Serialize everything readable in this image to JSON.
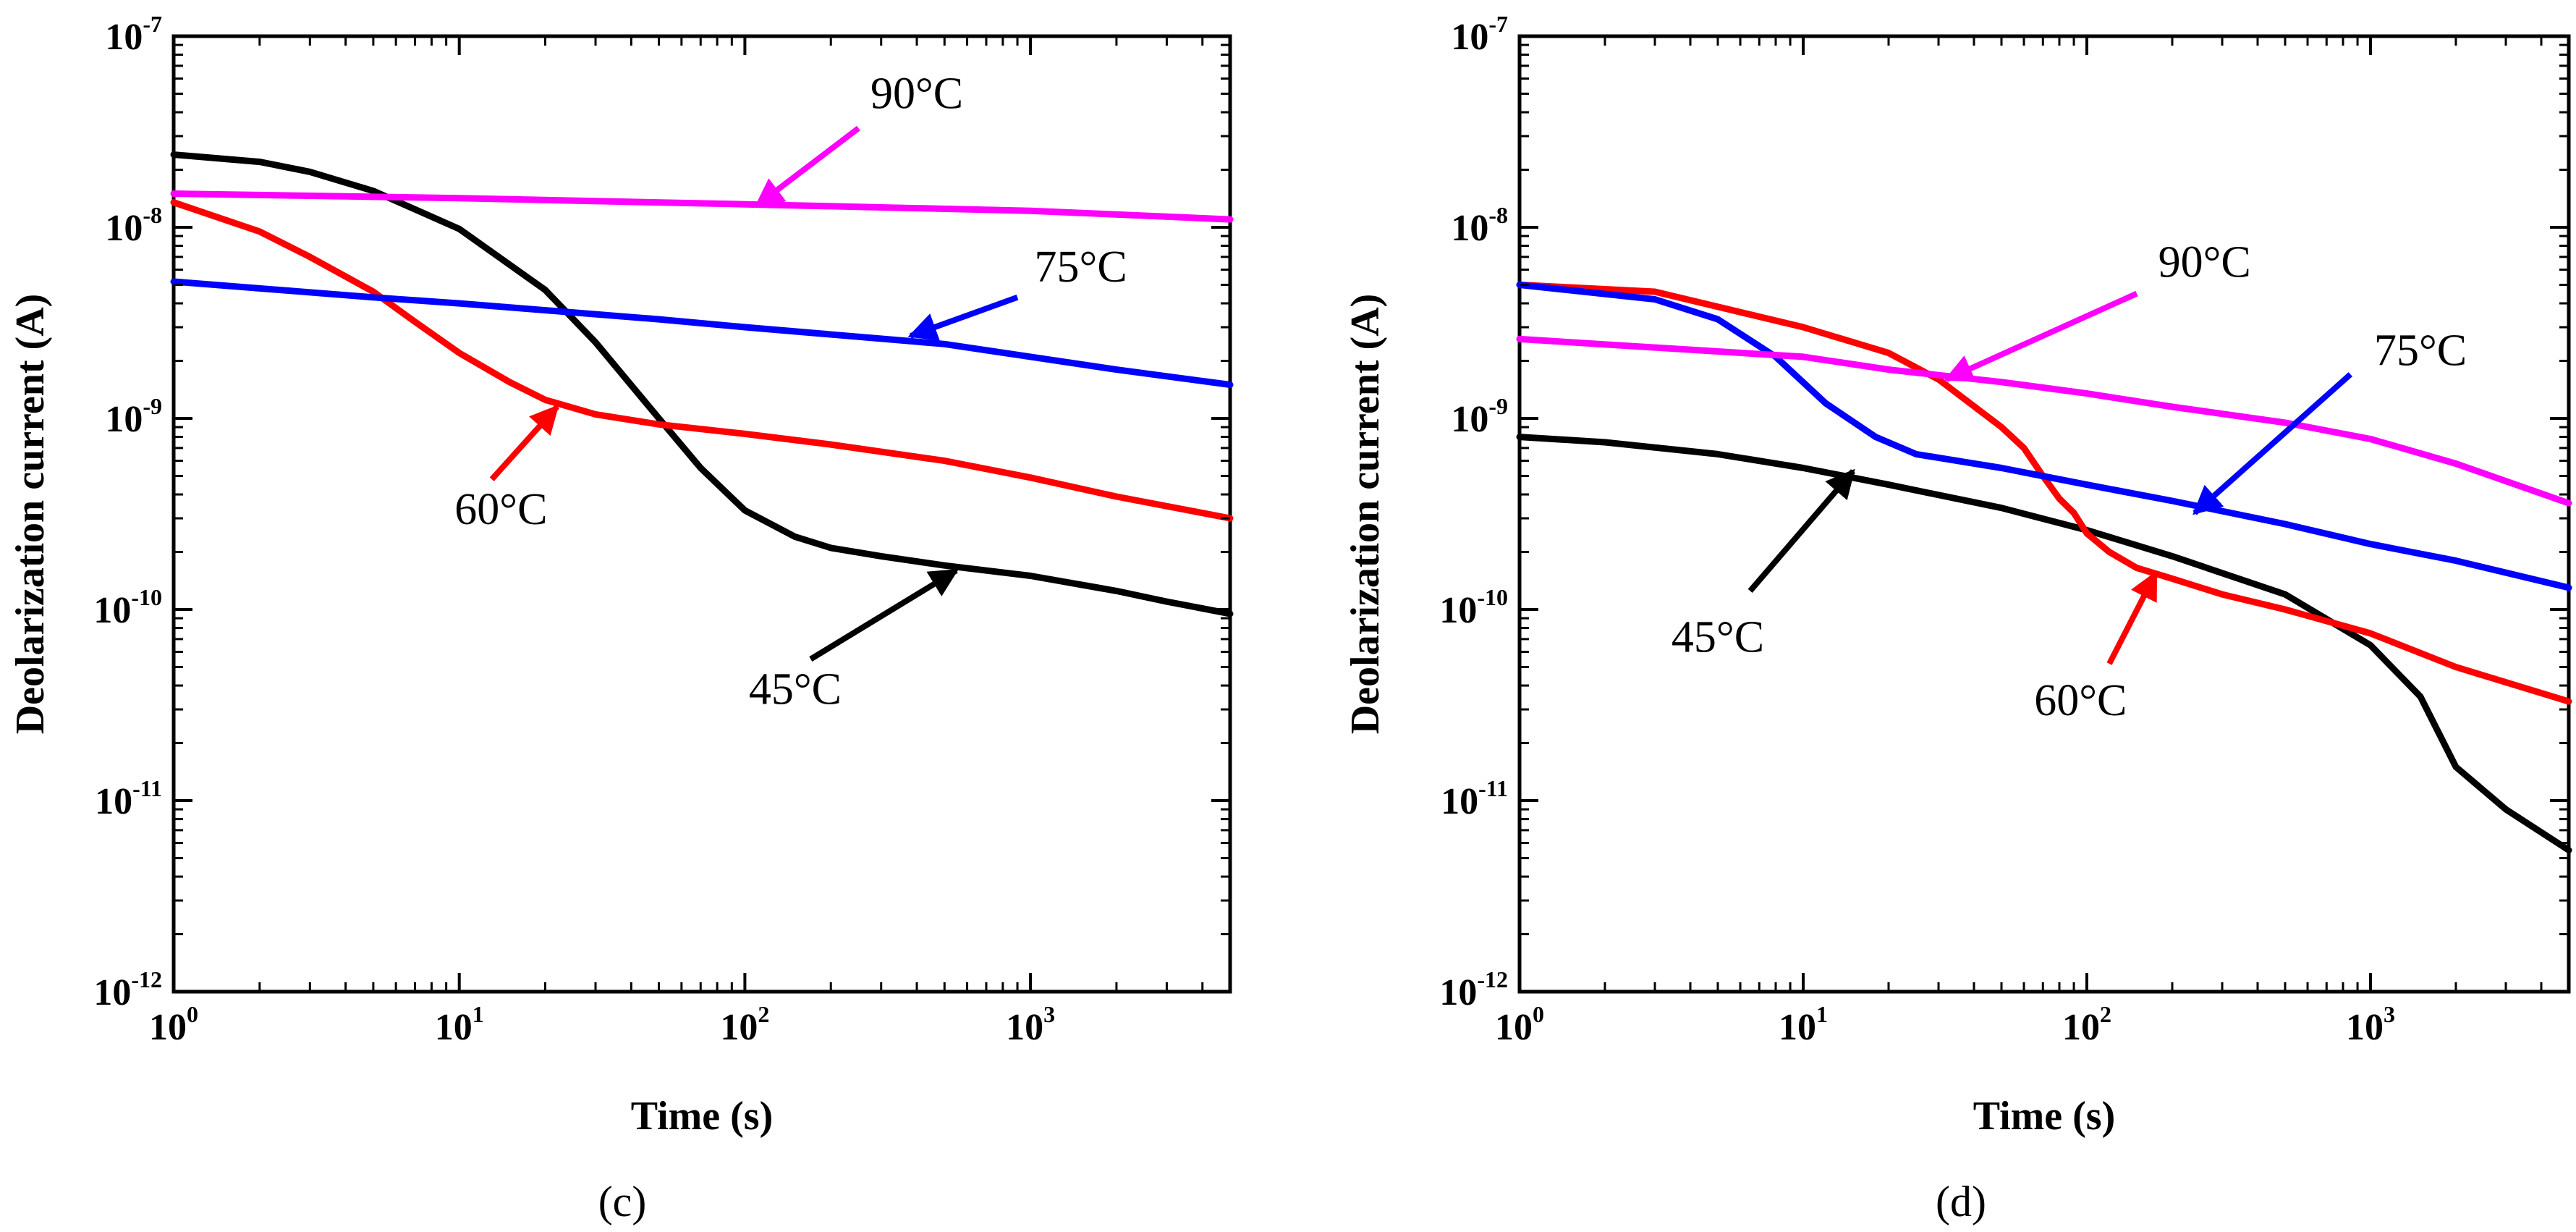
{
  "chart_data": [
    {
      "type": "line",
      "panel": "(c)",
      "xlabel": "Time (s)",
      "ylabel": "Deolarization current (A)",
      "xscale": "log",
      "yscale": "log",
      "xlim": [
        1,
        5000
      ],
      "ylim": [
        1e-12,
        1e-07
      ],
      "x_ticks": [
        {
          "base": "10",
          "exp": "0"
        },
        {
          "base": "10",
          "exp": "1"
        },
        {
          "base": "10",
          "exp": "2"
        },
        {
          "base": "10",
          "exp": "3"
        }
      ],
      "y_ticks": [
        {
          "base": "10",
          "exp": "-12"
        },
        {
          "base": "10",
          "exp": "-11"
        },
        {
          "base": "10",
          "exp": "-10"
        },
        {
          "base": "10",
          "exp": "-9"
        },
        {
          "base": "10",
          "exp": "-8"
        },
        {
          "base": "10",
          "exp": "-7"
        }
      ],
      "series": [
        {
          "name": "45°C",
          "color": "#000000",
          "x": [
            1,
            2,
            3,
            5,
            10,
            20,
            30,
            50,
            70,
            100,
            150,
            200,
            300,
            500,
            1000,
            2000,
            3000,
            5000
          ],
          "y": [
            2.4e-08,
            2.2e-08,
            1.95e-08,
            1.55e-08,
            9.8e-09,
            4.7e-09,
            2.5e-09,
            1e-09,
            5.5e-10,
            3.3e-10,
            2.4e-10,
            2.1e-10,
            1.9e-10,
            1.7e-10,
            1.5e-10,
            1.25e-10,
            1.1e-10,
            9.5e-11
          ]
        },
        {
          "name": "60°C",
          "color": "#ff0000",
          "x": [
            1,
            2,
            3,
            5,
            7,
            10,
            15,
            20,
            30,
            50,
            100,
            200,
            500,
            1000,
            2000,
            5000
          ],
          "y": [
            1.35e-08,
            9.5e-09,
            7e-09,
            4.6e-09,
            3.2e-09,
            2.2e-09,
            1.55e-09,
            1.25e-09,
            1.05e-09,
            9.3e-10,
            8.3e-10,
            7.3e-10,
            6e-10,
            4.9e-10,
            3.9e-10,
            3e-10
          ]
        },
        {
          "name": "75°C",
          "color": "#0000ff",
          "x": [
            1,
            5,
            10,
            50,
            100,
            500,
            1000,
            2000,
            5000
          ],
          "y": [
            5.2e-09,
            4.3e-09,
            4e-09,
            3.3e-09,
            3e-09,
            2.45e-09,
            2.1e-09,
            1.8e-09,
            1.5e-09
          ]
        },
        {
          "name": "90°C",
          "color": "#ff00ff",
          "x": [
            1,
            10,
            100,
            1000,
            5000
          ],
          "y": [
            1.5e-08,
            1.42e-08,
            1.32e-08,
            1.22e-08,
            1.1e-08
          ]
        }
      ],
      "annotations": [
        {
          "text": "90°C",
          "color": "#ff00ff",
          "text_at": [
            400,
            4.2e-08
          ],
          "tail": [
            250,
            3.3e-08
          ],
          "head": [
            110,
            1.3e-08
          ]
        },
        {
          "text": "75°C",
          "color": "#0000ff",
          "text_at": [
            1500,
            5.2e-09
          ],
          "tail": [
            900,
            4.3e-09
          ],
          "head": [
            380,
            2.7e-09
          ]
        },
        {
          "text": "60°C",
          "color": "#ff0000",
          "text_at": [
            14,
            2.8e-10
          ],
          "tail": [
            13,
            4.8e-10
          ],
          "head": [
            22,
            1.15e-09
          ]
        },
        {
          "text": "45°C",
          "color": "#000000",
          "text_at": [
            150,
            3.2e-11
          ],
          "tail": [
            170,
            5.5e-11
          ],
          "head": [
            550,
            1.6e-10
          ]
        }
      ]
    },
    {
      "type": "line",
      "panel": "(d)",
      "xlabel": "Time (s)",
      "ylabel": "Deolarization current (A)",
      "xscale": "log",
      "yscale": "log",
      "xlim": [
        1,
        5000
      ],
      "ylim": [
        1e-12,
        1e-07
      ],
      "x_ticks": [
        {
          "base": "10",
          "exp": "0"
        },
        {
          "base": "10",
          "exp": "1"
        },
        {
          "base": "10",
          "exp": "2"
        },
        {
          "base": "10",
          "exp": "3"
        }
      ],
      "y_ticks": [
        {
          "base": "10",
          "exp": "-12"
        },
        {
          "base": "10",
          "exp": "-11"
        },
        {
          "base": "10",
          "exp": "-10"
        },
        {
          "base": "10",
          "exp": "-9"
        },
        {
          "base": "10",
          "exp": "-8"
        },
        {
          "base": "10",
          "exp": "-7"
        }
      ],
      "series": [
        {
          "name": "45°C",
          "color": "#000000",
          "x": [
            1,
            2,
            5,
            10,
            20,
            50,
            100,
            200,
            500,
            1000,
            1500,
            2000,
            3000,
            5000
          ],
          "y": [
            8e-10,
            7.5e-10,
            6.5e-10,
            5.5e-10,
            4.5e-10,
            3.4e-10,
            2.6e-10,
            1.9e-10,
            1.2e-10,
            6.5e-11,
            3.5e-11,
            1.5e-11,
            9e-12,
            5.5e-12
          ]
        },
        {
          "name": "60°C",
          "color": "#ff0000",
          "x": [
            1,
            3,
            10,
            20,
            30,
            50,
            60,
            70,
            80,
            90,
            100,
            120,
            150,
            200,
            300,
            500,
            1000,
            2000,
            5000
          ],
          "y": [
            5e-09,
            4.6e-09,
            3e-09,
            2.2e-09,
            1.6e-09,
            9e-10,
            7e-10,
            5e-10,
            3.8e-10,
            3.2e-10,
            2.5e-10,
            2e-10,
            1.65e-10,
            1.45e-10,
            1.2e-10,
            1e-10,
            7.5e-11,
            5e-11,
            3.3e-11
          ]
        },
        {
          "name": "75°C",
          "color": "#0000ff",
          "x": [
            1,
            3,
            5,
            8,
            12,
            18,
            25,
            50,
            100,
            200,
            500,
            1000,
            2000,
            5000
          ],
          "y": [
            5e-09,
            4.2e-09,
            3.3e-09,
            2.1e-09,
            1.2e-09,
            8e-10,
            6.5e-10,
            5.5e-10,
            4.5e-10,
            3.7e-10,
            2.8e-10,
            2.2e-10,
            1.8e-10,
            1.3e-10
          ]
        },
        {
          "name": "90°C",
          "color": "#ff00ff",
          "x": [
            1,
            10,
            20,
            50,
            100,
            200,
            500,
            1000,
            2000,
            5000
          ],
          "y": [
            2.6e-09,
            2.1e-09,
            1.8e-09,
            1.55e-09,
            1.35e-09,
            1.15e-09,
            9.5e-10,
            7.8e-10,
            5.8e-10,
            3.6e-10
          ]
        }
      ],
      "annotations": [
        {
          "text": "90°C",
          "color": "#ff00ff",
          "text_at": [
            260,
            5.5e-09
          ],
          "tail": [
            150,
            4.5e-09
          ],
          "head": [
            32,
            1.6e-09
          ]
        },
        {
          "text": "75°C",
          "color": "#0000ff",
          "text_at": [
            1500,
            1.9e-09
          ],
          "tail": [
            850,
            1.7e-09
          ],
          "head": [
            240,
            3.2e-10
          ]
        },
        {
          "text": "45°C",
          "color": "#000000",
          "text_at": [
            5,
            6e-11
          ],
          "tail": [
            6.5,
            1.25e-10
          ],
          "head": [
            15,
            5.3e-10
          ]
        },
        {
          "text": "60°C",
          "color": "#ff0000",
          "text_at": [
            95,
            2.8e-11
          ],
          "tail": [
            120,
            5.2e-11
          ],
          "head": [
            175,
            1.55e-10
          ]
        }
      ]
    }
  ]
}
